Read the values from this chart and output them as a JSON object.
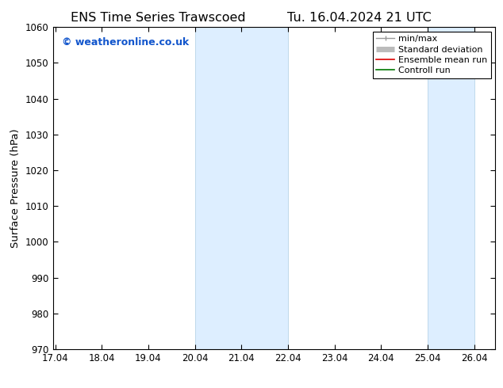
{
  "title_left": "ENS Time Series Trawscoed",
  "title_right": "Tu. 16.04.2024 21 UTC",
  "ylabel": "Surface Pressure (hPa)",
  "ylim": [
    970,
    1060
  ],
  "yticks": [
    970,
    980,
    990,
    1000,
    1010,
    1020,
    1030,
    1040,
    1050,
    1060
  ],
  "xlim_start": 17.04,
  "xlim_end": 26.5,
  "xticks": [
    17.04,
    18.04,
    19.04,
    20.04,
    21.04,
    22.04,
    23.04,
    24.04,
    25.04,
    26.04
  ],
  "xtick_labels": [
    "17.04",
    "18.04",
    "19.04",
    "20.04",
    "21.04",
    "22.04",
    "23.04",
    "24.04",
    "25.04",
    "26.04"
  ],
  "shaded_bands": [
    {
      "x_start": 20.04,
      "x_end": 22.04
    },
    {
      "x_start": 25.04,
      "x_end": 26.04
    }
  ],
  "band_color": "#ddeeff",
  "band_edge_color": "#b8d4e8",
  "watermark_text": "© weatheronline.co.uk",
  "watermark_color": "#1155cc",
  "legend_entries": [
    {
      "label": "min/max",
      "color": "#999999",
      "lw": 1.0
    },
    {
      "label": "Standard deviation",
      "color": "#bbbbbb",
      "lw": 5
    },
    {
      "label": "Ensemble mean run",
      "color": "#dd0000",
      "lw": 1.2
    },
    {
      "label": "Controll run",
      "color": "#007700",
      "lw": 1.2
    }
  ],
  "bg_color": "#ffffff",
  "title_fontsize": 11.5,
  "tick_fontsize": 8.5,
  "ylabel_fontsize": 9.5,
  "legend_fontsize": 8,
  "watermark_fontsize": 9
}
